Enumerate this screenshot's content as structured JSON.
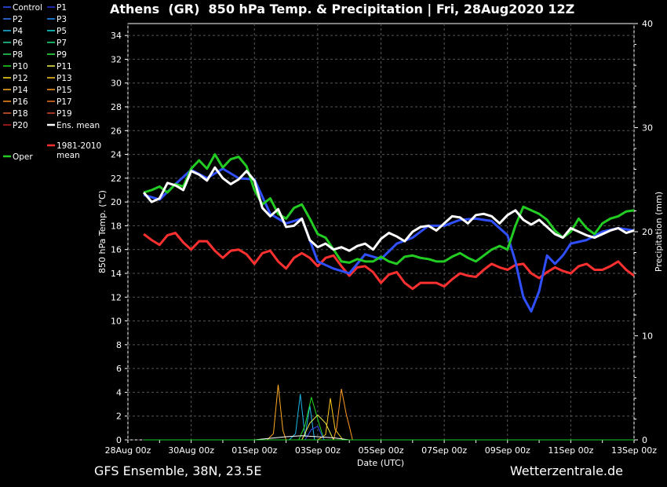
{
  "chart_data": {
    "type": "line",
    "title": "Athens  (GR)  850 hPa Temp. & Precipitation | Fri, 28Aug2020 12Z",
    "xlabel": "Date (UTC)",
    "ylabel": "850 hPa Temp. (°C)",
    "y2label": "Precipitation (mm)",
    "ylim": [
      0,
      35
    ],
    "y2lim": [
      0,
      40
    ],
    "grid": true,
    "legend_placement": "left",
    "x_tick_labels": [
      "28Aug 00z",
      "30Aug 00z",
      "01Sep 00z",
      "03Sep 00z",
      "05Sep 00z",
      "07Sep 00z",
      "09Sep 00z",
      "11Sep 00z",
      "13Sep 00z"
    ],
    "y_ticks": [
      0,
      2,
      4,
      6,
      8,
      10,
      12,
      14,
      16,
      18,
      20,
      22,
      24,
      26,
      28,
      30,
      32,
      34
    ],
    "y2_ticks": [
      0,
      10,
      20,
      30,
      40
    ],
    "x_days": [
      0.5,
      16
    ],
    "legend": [
      {
        "name": "Control",
        "color": "#3050ff"
      },
      {
        "name": "P1",
        "color": "#2233dd"
      },
      {
        "name": "P2",
        "color": "#2f7fff"
      },
      {
        "name": "P3",
        "color": "#1e90ff"
      },
      {
        "name": "P4",
        "color": "#1fb8e8"
      },
      {
        "name": "P5",
        "color": "#17e0e0"
      },
      {
        "name": "P6",
        "color": "#22d6a0"
      },
      {
        "name": "P7",
        "color": "#1ee27a"
      },
      {
        "name": "P8",
        "color": "#22e060"
      },
      {
        "name": "P9",
        "color": "#2ef048"
      },
      {
        "name": "P10",
        "color": "#22dd22"
      },
      {
        "name": "P11",
        "color": "#f2f24a"
      },
      {
        "name": "P12",
        "color": "#ffe020"
      },
      {
        "name": "P13",
        "color": "#ffc81e"
      },
      {
        "name": "P14",
        "color": "#ffb020"
      },
      {
        "name": "P15",
        "color": "#ff9a22"
      },
      {
        "name": "P16",
        "color": "#ff8a1e"
      },
      {
        "name": "P17",
        "color": "#f07320"
      },
      {
        "name": "P18",
        "color": "#e05a22"
      },
      {
        "name": "P19",
        "color": "#d84822"
      },
      {
        "name": "P20",
        "color": "#c02020"
      },
      {
        "name": "Ens. mean",
        "color": "#ffffff"
      },
      {
        "name": "1981-2010\nmean",
        "color": "#ff3030"
      },
      {
        "name": "Oper",
        "color": "#22cc22"
      }
    ],
    "series": [
      {
        "name": "Ens. mean",
        "color": "#ffffff",
        "width": 3,
        "x": [
          0.5,
          0.75,
          1,
          1.25,
          1.5,
          1.75,
          2,
          2.25,
          2.5,
          2.75,
          3,
          3.25,
          3.5,
          3.75,
          4,
          4.25,
          4.5,
          4.75,
          5,
          5.25,
          5.5,
          5.75,
          6,
          6.25,
          6.5,
          6.75,
          7,
          7.25,
          7.5,
          7.75,
          8,
          8.25,
          8.5,
          8.75,
          9,
          9.25,
          9.5,
          9.75,
          10,
          10.25,
          10.5,
          10.75,
          11,
          11.25,
          11.5,
          11.75,
          12,
          12.25,
          12.5,
          12.75,
          13,
          13.25,
          13.5,
          13.75,
          14,
          14.25,
          14.5,
          14.75,
          15,
          15.25,
          15.5,
          15.75,
          16
        ],
        "y": [
          20.8,
          20.0,
          20.3,
          21.6,
          21.4,
          21.0,
          22.6,
          22.3,
          21.8,
          22.9,
          22.0,
          21.5,
          21.9,
          22.6,
          21.8,
          19.5,
          18.8,
          19.4,
          17.9,
          18.0,
          18.6,
          16.8,
          16.2,
          16.5,
          16.0,
          16.2,
          15.9,
          16.3,
          16.5,
          16.0,
          16.9,
          17.4,
          17.1,
          16.7,
          17.5,
          17.9,
          18.0,
          17.6,
          18.2,
          18.8,
          18.7,
          18.2,
          18.9,
          19.0,
          18.8,
          18.2,
          18.9,
          19.3,
          18.5,
          18.1,
          18.5,
          17.9,
          17.3,
          17.0,
          17.8,
          17.5,
          17.2,
          17.0,
          17.3,
          17.6,
          17.8,
          17.4,
          17.6
        ]
      },
      {
        "name": "Oper",
        "color": "#22cc22",
        "width": 3,
        "x": [
          0.5,
          0.75,
          1,
          1.25,
          1.5,
          1.75,
          2,
          2.25,
          2.5,
          2.75,
          3,
          3.25,
          3.5,
          3.75,
          4,
          4.25,
          4.5,
          4.75,
          5,
          5.25,
          5.5,
          5.75,
          6,
          6.25,
          6.5,
          6.75,
          7,
          7.25,
          7.5,
          7.75,
          8,
          8.25,
          8.5,
          8.75,
          9,
          9.25,
          9.5,
          9.75,
          10,
          10.25,
          10.5,
          10.75,
          11,
          11.25,
          11.5,
          11.75,
          12,
          12.25,
          12.5,
          12.75,
          13,
          13.25,
          13.5,
          13.75,
          14,
          14.25,
          14.5,
          14.75,
          15,
          15.25,
          15.5,
          15.75,
          16
        ],
        "y": [
          20.8,
          21.0,
          21.3,
          20.8,
          21.5,
          21.3,
          22.8,
          23.5,
          22.8,
          24.0,
          22.9,
          23.6,
          23.8,
          23.0,
          21.0,
          19.8,
          20.3,
          19.0,
          18.6,
          19.5,
          19.8,
          18.6,
          17.3,
          17.0,
          16.0,
          15.0,
          14.9,
          15.2,
          15.0,
          15.0,
          15.4,
          15.0,
          14.8,
          15.4,
          15.5,
          15.3,
          15.2,
          15.0,
          15.0,
          15.4,
          15.7,
          15.3,
          15.0,
          15.5,
          16.0,
          16.3,
          16.0,
          18.0,
          19.6,
          19.3,
          19.0,
          18.5,
          17.6,
          17.0,
          17.5,
          18.6,
          17.8,
          17.3,
          18.2,
          18.6,
          18.8,
          19.2,
          19.3
        ]
      },
      {
        "name": "1981-2010 mean",
        "color": "#ff3030",
        "width": 3,
        "x": [
          0.5,
          0.75,
          1,
          1.25,
          1.5,
          1.75,
          2,
          2.25,
          2.5,
          2.75,
          3,
          3.25,
          3.5,
          3.75,
          4,
          4.25,
          4.5,
          4.75,
          5,
          5.25,
          5.5,
          5.75,
          6,
          6.25,
          6.5,
          6.75,
          7,
          7.25,
          7.5,
          7.75,
          8,
          8.25,
          8.5,
          8.75,
          9,
          9.25,
          9.5,
          9.75,
          10,
          10.25,
          10.5,
          10.75,
          11,
          11.25,
          11.5,
          11.75,
          12,
          12.25,
          12.5,
          12.75,
          13,
          13.25,
          13.5,
          13.75,
          14,
          14.25,
          14.5,
          14.75,
          15,
          15.25,
          15.5,
          15.75,
          16
        ],
        "y": [
          17.3,
          16.8,
          16.4,
          17.2,
          17.4,
          16.6,
          16.0,
          16.7,
          16.7,
          15.9,
          15.3,
          15.9,
          16.0,
          15.6,
          14.8,
          15.7,
          15.9,
          15.0,
          14.4,
          15.3,
          15.7,
          15.3,
          14.6,
          15.3,
          15.5,
          14.6,
          13.8,
          14.5,
          14.6,
          14.1,
          13.2,
          13.9,
          14.1,
          13.2,
          12.7,
          13.2,
          13.2,
          13.2,
          12.9,
          13.5,
          14.0,
          13.8,
          13.7,
          14.3,
          14.8,
          14.5,
          14.3,
          14.7,
          14.8,
          14.0,
          13.6,
          14.1,
          14.5,
          14.2,
          14.0,
          14.6,
          14.8,
          14.3,
          14.3,
          14.6,
          15.0,
          14.3,
          13.8
        ]
      },
      {
        "name": "Control",
        "color": "#3050ff",
        "width": 3,
        "x": [
          0.5,
          1,
          1.5,
          2,
          2.5,
          3,
          3.5,
          4,
          4.5,
          5,
          5.5,
          6,
          6.5,
          7,
          7.5,
          8,
          8.5,
          9,
          9.5,
          10,
          10.5,
          11,
          11.5,
          12,
          12.25,
          12.5,
          12.75,
          13,
          13.25,
          13.5,
          13.75,
          14,
          14.5,
          15,
          15.5,
          16
        ],
        "y": [
          20.6,
          20.2,
          21.5,
          22.7,
          22.0,
          22.8,
          22.0,
          21.9,
          19.0,
          18.2,
          18.6,
          15.0,
          14.4,
          14.0,
          15.6,
          15.2,
          16.5,
          17.0,
          18.0,
          18.0,
          18.5,
          18.6,
          18.4,
          17.2,
          15.0,
          12.0,
          10.8,
          12.5,
          15.5,
          14.8,
          15.5,
          16.5,
          16.8,
          17.5,
          17.8,
          17.6
        ]
      }
    ],
    "members_note": "",
    "precip_series": [
      {
        "color": "#ffaa22",
        "x": [
          4.4,
          4.6,
          4.75,
          4.9,
          5.0,
          5.25,
          5.5
        ],
        "y": [
          0,
          0.6,
          5.3,
          0.9,
          0,
          0,
          0
        ]
      },
      {
        "color": "#1fb8e8",
        "x": [
          5.1,
          5.3,
          5.45,
          5.6,
          5.75,
          5.9
        ],
        "y": [
          0,
          0.6,
          4.4,
          0.3,
          3.3,
          0
        ]
      },
      {
        "color": "#22dd22",
        "x": [
          5.4,
          5.6,
          5.8,
          6.0,
          6.2
        ],
        "y": [
          0,
          1.4,
          4.1,
          2.0,
          0
        ]
      },
      {
        "color": "#f2f24a",
        "x": [
          5.5,
          5.75,
          6.0,
          6.25,
          6.5,
          6.75
        ],
        "y": [
          0,
          1.6,
          2.4,
          1.6,
          0,
          0
        ]
      },
      {
        "color": "#ff9a22",
        "x": [
          6.5,
          6.6,
          6.75,
          6.9,
          7.0,
          7.1
        ],
        "y": [
          0,
          1.2,
          4.9,
          2.5,
          1.3,
          0
        ]
      },
      {
        "color": "#ffc81e",
        "x": [
          6.0,
          6.25,
          6.4,
          6.55,
          6.8
        ],
        "y": [
          0,
          0.5,
          4.0,
          1.0,
          0
        ]
      },
      {
        "color": "#3050ff",
        "x": [
          5.6,
          5.8,
          6.0,
          6.2
        ],
        "y": [
          0,
          1.0,
          1.3,
          0
        ]
      },
      {
        "color": "#ffffff",
        "x": [
          4.0,
          5.0,
          5.5,
          6.0,
          6.5,
          7.0
        ],
        "y": [
          0,
          0.3,
          0.4,
          0.3,
          0.2,
          0
        ]
      },
      {
        "color": "#22cc22",
        "x": [
          0.5,
          16
        ],
        "y": [
          0,
          0
        ]
      }
    ]
  },
  "footer": {
    "left": "GFS Ensemble, 38N, 23.5E",
    "right": "Wetterzentrale.de"
  }
}
